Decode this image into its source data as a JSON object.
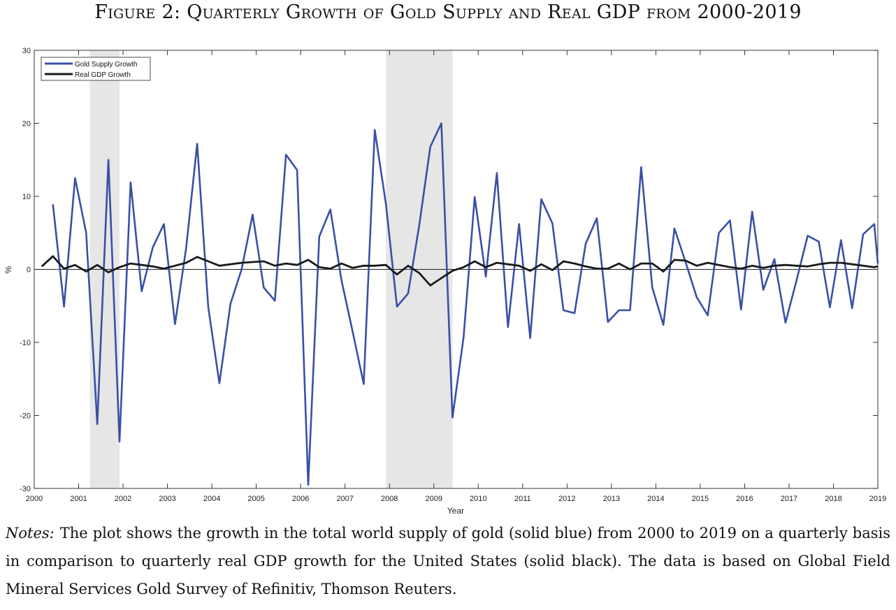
{
  "figure": {
    "title": "Figure 2: Quarterly Growth of Gold Supply and Real GDP from 2000-2019"
  },
  "notes": {
    "label": "Notes:",
    "text": "The plot shows the growth in the total world supply of gold (solid blue) from 2000 to 2019 on a quarterly basis in comparison to quarterly real GDP growth for the United States (solid black). The data is based on Global Field Mineral Services Gold Survey of Refinitiv, Thomson Reuters."
  },
  "chart_data": {
    "type": "line",
    "xlabel": "Year",
    "ylabel": "%",
    "xlim": [
      2000,
      2019
    ],
    "ylim": [
      -30,
      30
    ],
    "xticks": [
      2000,
      2001,
      2002,
      2003,
      2004,
      2005,
      2006,
      2007,
      2008,
      2009,
      2010,
      2011,
      2012,
      2013,
      2014,
      2015,
      2016,
      2017,
      2018,
      2019
    ],
    "yticks": [
      -30,
      -20,
      -10,
      0,
      10,
      20,
      30
    ],
    "grid": false,
    "legend_position": "top-left",
    "zero_line": true,
    "shaded_regions": [
      {
        "start": 2001.25,
        "end": 2001.92
      },
      {
        "start": 2007.92,
        "end": 2009.42
      }
    ],
    "colors": {
      "gold_supply": "#3a50a5",
      "real_gdp": "#1a1a1a",
      "shading": "#e6e6e6"
    },
    "series": [
      {
        "name": "Gold Supply Growth",
        "color": "#3a50a5",
        "x": [
          2000.42,
          2000.67,
          2000.92,
          2001.17,
          2001.42,
          2001.67,
          2001.92,
          2002.17,
          2002.42,
          2002.67,
          2002.92,
          2003.17,
          2003.42,
          2003.67,
          2003.92,
          2004.17,
          2004.42,
          2004.67,
          2004.92,
          2005.17,
          2005.42,
          2005.67,
          2005.92,
          2006.17,
          2006.42,
          2006.67,
          2006.92,
          2007.17,
          2007.42,
          2007.67,
          2007.92,
          2008.17,
          2008.42,
          2008.67,
          2008.92,
          2009.17,
          2009.42,
          2009.67,
          2009.92,
          2010.17,
          2010.42,
          2010.67,
          2010.92,
          2011.17,
          2011.42,
          2011.67,
          2011.92,
          2012.17,
          2012.42,
          2012.67,
          2012.92,
          2013.17,
          2013.42,
          2013.67,
          2013.92,
          2014.17,
          2014.42,
          2014.67,
          2014.92,
          2015.17,
          2015.42,
          2015.67,
          2015.92,
          2016.17,
          2016.42,
          2016.67,
          2016.92,
          2017.17,
          2017.42,
          2017.67,
          2017.92,
          2018.17,
          2018.42,
          2018.67,
          2018.92,
          2019.0
        ],
        "values": [
          8.9,
          -5.1,
          12.5,
          5.0,
          -21.2,
          15.0,
          -23.6,
          11.9,
          -3.0,
          3.0,
          6.2,
          -7.5,
          2.9,
          17.2,
          -5.2,
          -15.6,
          -4.7,
          0.0,
          7.5,
          -2.5,
          -4.3,
          15.7,
          13.6,
          -29.5,
          4.5,
          8.2,
          -1.5,
          -8.5,
          -15.7,
          19.1,
          9.0,
          -5.1,
          -3.3,
          6.0,
          16.8,
          20.0,
          -20.3,
          -9.3,
          9.9,
          -1.0,
          13.2,
          -7.9,
          6.2,
          -9.4,
          9.6,
          6.3,
          -5.6,
          -6.0,
          3.5,
          7.0,
          -7.2,
          -5.6,
          -5.6,
          14.0,
          -2.5,
          -7.6,
          5.6,
          1.0,
          -3.8,
          -6.3,
          5.0,
          6.7,
          -5.5,
          7.9,
          -2.8,
          1.4,
          -7.3,
          -1.5,
          4.6,
          3.8,
          -5.2,
          4.0,
          -5.3,
          4.8,
          6.2,
          0.8
        ]
      },
      {
        "name": "Real GDP Growth",
        "color": "#1a1a1a",
        "x": [
          2000.17,
          2000.42,
          2000.67,
          2000.92,
          2001.17,
          2001.42,
          2001.67,
          2001.92,
          2002.17,
          2002.42,
          2002.67,
          2002.92,
          2003.17,
          2003.42,
          2003.67,
          2003.92,
          2004.17,
          2004.42,
          2004.67,
          2004.92,
          2005.17,
          2005.42,
          2005.67,
          2005.92,
          2006.17,
          2006.42,
          2006.67,
          2006.92,
          2007.17,
          2007.42,
          2007.67,
          2007.92,
          2008.17,
          2008.42,
          2008.67,
          2008.92,
          2009.17,
          2009.42,
          2009.67,
          2009.92,
          2010.17,
          2010.42,
          2010.67,
          2010.92,
          2011.17,
          2011.42,
          2011.67,
          2011.92,
          2012.17,
          2012.42,
          2012.67,
          2012.92,
          2013.17,
          2013.42,
          2013.67,
          2013.92,
          2014.17,
          2014.42,
          2014.67,
          2014.92,
          2015.17,
          2015.42,
          2015.67,
          2015.92,
          2016.17,
          2016.42,
          2016.67,
          2016.92,
          2017.17,
          2017.42,
          2017.67,
          2017.92,
          2018.17,
          2018.42,
          2018.67,
          2018.92,
          2019.0
        ],
        "values": [
          0.4,
          1.8,
          0.1,
          0.6,
          -0.3,
          0.6,
          -0.4,
          0.3,
          0.8,
          0.6,
          0.4,
          0.1,
          0.5,
          0.9,
          1.7,
          1.1,
          0.5,
          0.7,
          0.9,
          1.0,
          1.1,
          0.5,
          0.8,
          0.6,
          1.3,
          0.3,
          0.1,
          0.8,
          0.2,
          0.5,
          0.5,
          0.6,
          -0.7,
          0.5,
          -0.5,
          -2.2,
          -1.2,
          -0.2,
          0.3,
          1.1,
          0.3,
          0.9,
          0.7,
          0.5,
          -0.2,
          0.7,
          -0.1,
          1.1,
          0.8,
          0.4,
          0.1,
          0.1,
          0.8,
          0.0,
          0.8,
          0.8,
          -0.3,
          1.3,
          1.2,
          0.5,
          0.9,
          0.6,
          0.3,
          0.1,
          0.5,
          0.2,
          0.5,
          0.6,
          0.5,
          0.4,
          0.7,
          0.9,
          0.9,
          0.7,
          0.5,
          0.3,
          0.4
        ]
      }
    ]
  }
}
